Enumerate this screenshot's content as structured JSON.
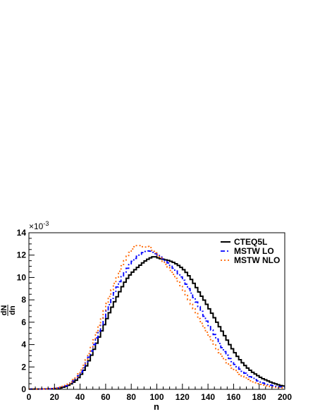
{
  "chart_data": {
    "type": "line",
    "style": "step",
    "xlabel": "n",
    "ylabel": {
      "numerator": "dN",
      "denominator": "dn"
    },
    "y_exponent_label": "×10",
    "y_exponent_power": "-3",
    "xlim": [
      0,
      200
    ],
    "ylim": [
      0,
      14
    ],
    "x_ticks": [
      "0",
      "20",
      "40",
      "60",
      "80",
      "100",
      "120",
      "140",
      "160",
      "180",
      "200"
    ],
    "y_ticks": [
      "0",
      "2",
      "4",
      "6",
      "8",
      "10",
      "12",
      "14"
    ],
    "legend_position": "top-right",
    "grid": false,
    "bin_width": 2,
    "series": [
      {
        "name": "CTEQ5L",
        "color": "#000000",
        "dash": "solid",
        "x": [
          0,
          6,
          12,
          18,
          22,
          26,
          30,
          34,
          38,
          42,
          46,
          50,
          54,
          58,
          62,
          66,
          70,
          74,
          78,
          82,
          86,
          90,
          94,
          98,
          102,
          106,
          110,
          114,
          118,
          122,
          126,
          130,
          134,
          138,
          142,
          146,
          150,
          154,
          158,
          162,
          166,
          170,
          174,
          178,
          182,
          186,
          190,
          194,
          198,
          200
        ],
        "y": [
          0.02,
          0.02,
          0.03,
          0.05,
          0.08,
          0.15,
          0.3,
          0.55,
          0.9,
          1.5,
          2.3,
          3.3,
          4.4,
          5.5,
          6.6,
          7.6,
          8.5,
          9.4,
          10.1,
          10.6,
          11.0,
          11.4,
          11.7,
          11.9,
          11.7,
          11.6,
          11.5,
          11.3,
          11.0,
          10.6,
          10.0,
          9.3,
          8.5,
          7.8,
          7.0,
          6.2,
          5.4,
          4.6,
          3.8,
          3.1,
          2.5,
          2.0,
          1.6,
          1.3,
          1.0,
          0.8,
          0.6,
          0.45,
          0.3,
          0.3
        ]
      },
      {
        "name": "MSTW LO",
        "color": "#0000ff",
        "dash": "6,3,2,3",
        "x": [
          0,
          6,
          12,
          18,
          22,
          26,
          30,
          34,
          38,
          42,
          46,
          50,
          54,
          58,
          62,
          66,
          70,
          74,
          78,
          82,
          86,
          90,
          94,
          98,
          102,
          106,
          110,
          114,
          118,
          122,
          126,
          130,
          134,
          138,
          142,
          146,
          150,
          154,
          158,
          162,
          166,
          170,
          174,
          178,
          182,
          186,
          190,
          194,
          198,
          200
        ],
        "y": [
          0.02,
          0.02,
          0.03,
          0.06,
          0.1,
          0.2,
          0.35,
          0.65,
          1.05,
          1.7,
          2.6,
          3.7,
          4.9,
          6.1,
          7.3,
          8.4,
          9.4,
          10.3,
          11.0,
          11.6,
          12.0,
          12.3,
          12.4,
          12.2,
          11.9,
          11.6,
          11.2,
          10.7,
          10.2,
          9.6,
          8.8,
          8.0,
          7.2,
          6.3,
          5.5,
          4.7,
          3.9,
          3.2,
          2.6,
          2.1,
          1.7,
          1.35,
          1.05,
          0.8,
          0.6,
          0.45,
          0.35,
          0.25,
          0.2,
          0.2
        ]
      },
      {
        "name": "MSTW NLO",
        "color": "#ff6600",
        "dash": "2,3",
        "x": [
          0,
          6,
          12,
          18,
          22,
          26,
          30,
          34,
          38,
          42,
          46,
          50,
          54,
          58,
          62,
          66,
          70,
          74,
          78,
          82,
          86,
          90,
          94,
          98,
          102,
          106,
          110,
          114,
          118,
          122,
          126,
          130,
          134,
          138,
          142,
          146,
          150,
          154,
          158,
          162,
          166,
          170,
          174,
          178,
          182,
          186,
          190,
          194,
          198,
          200
        ],
        "y": [
          0.02,
          0.02,
          0.03,
          0.07,
          0.12,
          0.22,
          0.4,
          0.75,
          1.2,
          1.9,
          2.9,
          4.1,
          5.4,
          6.7,
          8.0,
          9.2,
          10.3,
          11.3,
          12.1,
          12.7,
          12.9,
          12.7,
          12.8,
          12.3,
          11.9,
          11.3,
          10.8,
          10.1,
          9.4,
          8.6,
          7.8,
          7.0,
          6.1,
          5.3,
          4.5,
          3.8,
          3.1,
          2.5,
          2.0,
          1.6,
          1.25,
          0.95,
          0.7,
          0.55,
          0.4,
          0.3,
          0.22,
          0.16,
          0.12,
          0.12
        ]
      }
    ]
  }
}
